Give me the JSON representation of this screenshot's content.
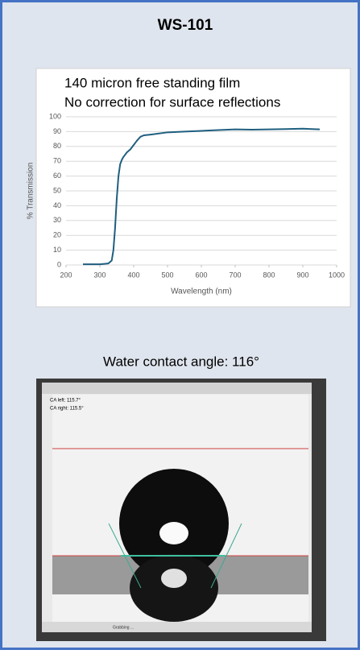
{
  "title": "WS-101",
  "chart_data": {
    "type": "line",
    "title": "140 micron free standing film",
    "subtitle": "No correction for surface reflections",
    "x_label": "Wavelength (nm)",
    "y_label": "% Transmission",
    "x": [
      250,
      300,
      325,
      335,
      340,
      345,
      350,
      355,
      360,
      365,
      370,
      380,
      390,
      400,
      410,
      420,
      430,
      450,
      500,
      550,
      600,
      650,
      700,
      750,
      800,
      850,
      900,
      950
    ],
    "series": [
      {
        "color": "#1f5f7f",
        "values": [
          0.5,
          0.5,
          1,
          3,
          10,
          25,
          45,
          60,
          68,
          71,
          73,
          76,
          78,
          81,
          84,
          86.5,
          87.5,
          88,
          89.5,
          90,
          90.5,
          91,
          91.5,
          91.3,
          91.5,
          91.7,
          92,
          91.5
        ]
      }
    ],
    "xlim": [
      200,
      1000
    ],
    "xticks": [
      200,
      300,
      400,
      500,
      600,
      700,
      800,
      900,
      1000
    ],
    "ylim": [
      0,
      100
    ],
    "yticks": [
      0,
      10,
      20,
      30,
      40,
      50,
      60,
      70,
      80,
      90,
      100
    ],
    "grid": true
  },
  "photo": {
    "caption": "Water contact angle:  116°",
    "ca_left": "CA left: 115.7°",
    "ca_right": "CA right: 115.5°",
    "status": "Grabbing ..."
  }
}
